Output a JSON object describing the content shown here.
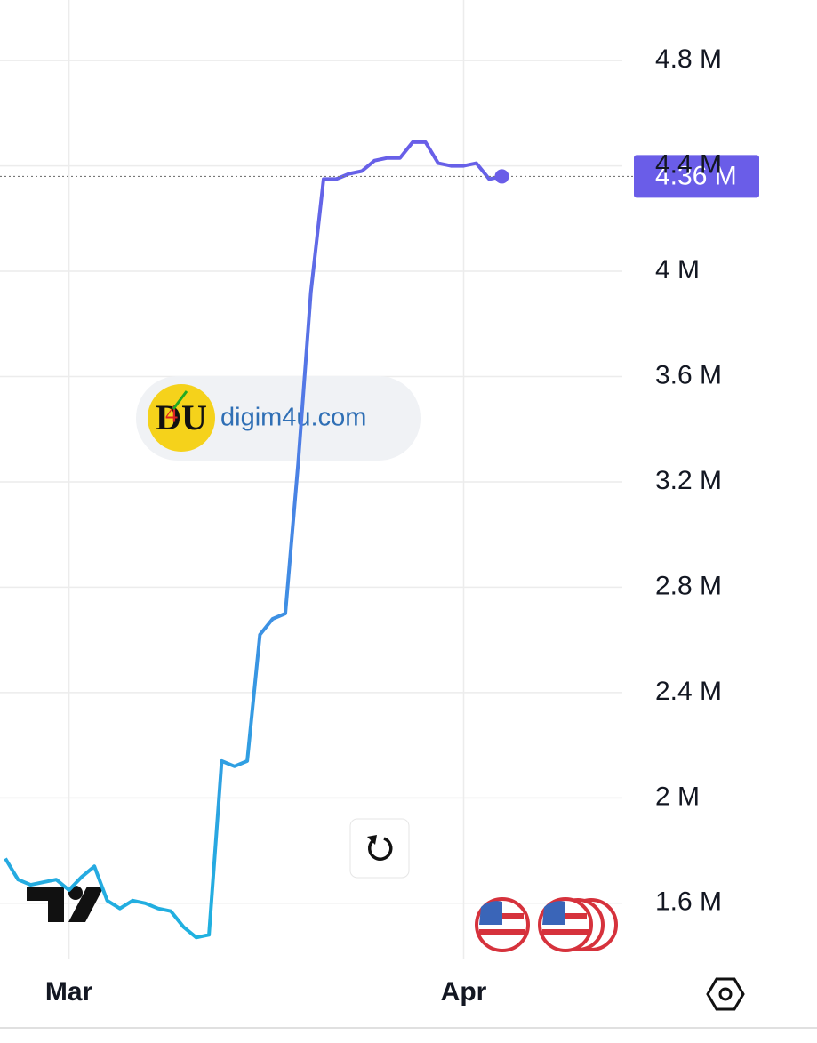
{
  "chart_data": {
    "type": "line",
    "watermark": "digim4u.com",
    "categories": [
      null,
      null,
      null,
      null,
      null,
      "Mar",
      null,
      null,
      null,
      null,
      null,
      null,
      null,
      null,
      null,
      null,
      null,
      null,
      null,
      null,
      null,
      null,
      null,
      null,
      null,
      null,
      null,
      null,
      null,
      null,
      null,
      null,
      null,
      null,
      null,
      null,
      "Apr",
      null,
      null,
      null
    ],
    "series": [
      {
        "color": "#6a5de8",
        "gradient_color": "#1fb2e0",
        "values": [
          1770000,
          1690000,
          1670000,
          1680000,
          1690000,
          1650000,
          1700000,
          1740000,
          1610000,
          1580000,
          1610000,
          1600000,
          1580000,
          1570000,
          1510000,
          1470000,
          1480000,
          2140000,
          2120000,
          2140000,
          2620000,
          2680000,
          2700000,
          3270000,
          3920000,
          4350000,
          4350000,
          4370000,
          4380000,
          4420000,
          4430000,
          4430000,
          4490000,
          4490000,
          4410000,
          4400000,
          4400000,
          4410000,
          4350000,
          4360000
        ],
        "value_labels": [
          null,
          null,
          null,
          null,
          null,
          null,
          null,
          null,
          null,
          null,
          null,
          null,
          null,
          null,
          null,
          null,
          null,
          null,
          null,
          null,
          null,
          null,
          null,
          null,
          null,
          null,
          null,
          null,
          null,
          null,
          null,
          null,
          null,
          null,
          null,
          null,
          null,
          null,
          null,
          "4.36 M"
        ]
      }
    ],
    "ylim": [
      1390000,
      5030000
    ],
    "yticks": [
      {
        "value": 1600000,
        "label": "1.6 M"
      },
      {
        "value": 2000000,
        "label": "2 M"
      },
      {
        "value": 2400000,
        "label": "2.4 M"
      },
      {
        "value": 2800000,
        "label": "2.8 M"
      },
      {
        "value": 3200000,
        "label": "3.2 M"
      },
      {
        "value": 3600000,
        "label": "3.6 M"
      },
      {
        "value": 4000000,
        "label": "4 M"
      },
      {
        "value": 4400000,
        "label": "4.4 M"
      },
      {
        "value": 4800000,
        "label": "4.8 M"
      }
    ],
    "hidden_ytick_labels": [],
    "grid": true
  }
}
